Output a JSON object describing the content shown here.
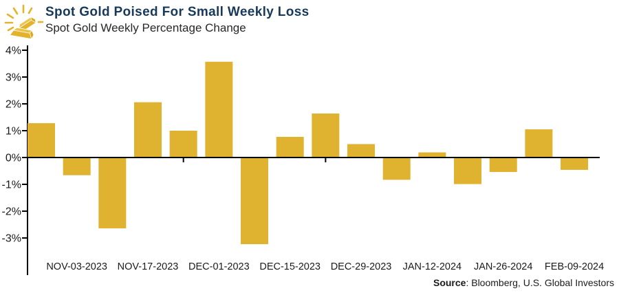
{
  "header": {
    "title": "Spot Gold Poised For Small Weekly Loss",
    "subtitle": "Spot Gold Weekly Percentage Change",
    "title_color": "#17395A"
  },
  "footer": {
    "source_label": "Source",
    "source_rest": ": Bloomberg, U.S. Global Investors"
  },
  "chart_data": {
    "type": "bar",
    "title": "Spot Gold Weekly Percentage Change",
    "values": [
      1.28,
      -0.66,
      -2.64,
      2.06,
      1.0,
      3.57,
      -3.23,
      0.77,
      1.64,
      0.5,
      -0.83,
      0.19,
      -0.99,
      -0.54,
      1.05,
      -0.46
    ],
    "x_tick_labels": [
      "NOV-03-2023",
      "NOV-17-2023",
      "DEC-01-2023",
      "DEC-15-2023",
      "DEC-29-2023",
      "JAN-12-2024",
      "JAN-26-2024",
      "FEB-09-2024"
    ],
    "x_labeled_bar_indices": [
      1,
      3,
      5,
      7,
      9,
      11,
      13,
      15
    ],
    "x_minor_tick_bar_indices": [
      4,
      8
    ],
    "y_tick_labels": [
      "4%",
      "3%",
      "2%",
      "1%",
      "0%",
      "-1%",
      "-2%",
      "-3%"
    ],
    "y_tick_values": [
      4,
      3,
      2,
      1,
      0,
      -1,
      -2,
      -3
    ],
    "ylim": [
      -4.4,
      4.2
    ],
    "xlabel": "",
    "ylabel": "",
    "grid": false,
    "legend": null,
    "bar_color": "#DFB22F",
    "axis_color": "#000000"
  }
}
